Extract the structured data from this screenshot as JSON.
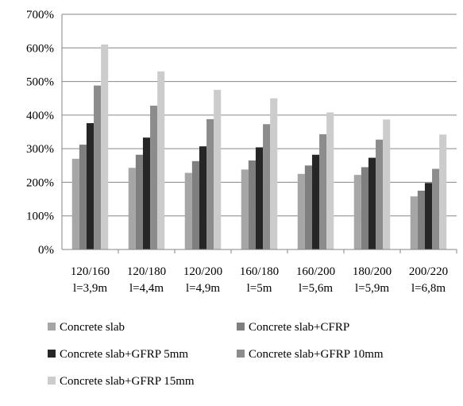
{
  "chart_data": {
    "type": "bar",
    "title": "",
    "xlabel": "",
    "ylabel": "",
    "ylim": [
      0,
      700
    ],
    "y_ticks": [
      0,
      100,
      200,
      300,
      400,
      500,
      600,
      700
    ],
    "y_tick_labels": [
      "0%",
      "100%",
      "200%",
      "300%",
      "400%",
      "500%",
      "600%",
      "700%"
    ],
    "grid": true,
    "legend_placement": "bottom",
    "categories": [
      {
        "line1": "120/160",
        "line2": "l=3,9m"
      },
      {
        "line1": "120/180",
        "line2": "l=4,4m"
      },
      {
        "line1": "120/200",
        "line2": "l=4,9m"
      },
      {
        "line1": "160/180",
        "line2": "l=5m"
      },
      {
        "line1": "160/200",
        "line2": "l=5,6m"
      },
      {
        "line1": "180/200",
        "line2": "l=5,9m"
      },
      {
        "line1": "200/220",
        "line2": "l=6,8m"
      }
    ],
    "series": [
      {
        "name": "Concrete slab",
        "color": "#A6A6A6",
        "values": [
          270,
          243,
          228,
          238,
          225,
          222,
          158
        ]
      },
      {
        "name": "Concrete slab+CFRP",
        "color": "#7F7F7F",
        "values": [
          312,
          282,
          263,
          265,
          250,
          245,
          175
        ]
      },
      {
        "name": "Concrete slab+GFRP 5mm",
        "color": "#262626",
        "values": [
          376,
          333,
          307,
          304,
          282,
          273,
          198
        ]
      },
      {
        "name": "Concrete slab+GFRP 10mm",
        "color": "#8C8C8C",
        "values": [
          488,
          428,
          388,
          373,
          343,
          327,
          240
        ]
      },
      {
        "name": "Concrete slab+GFRP 15mm",
        "color": "#CCCCCC",
        "values": [
          610,
          530,
          475,
          450,
          408,
          387,
          342
        ]
      }
    ]
  }
}
